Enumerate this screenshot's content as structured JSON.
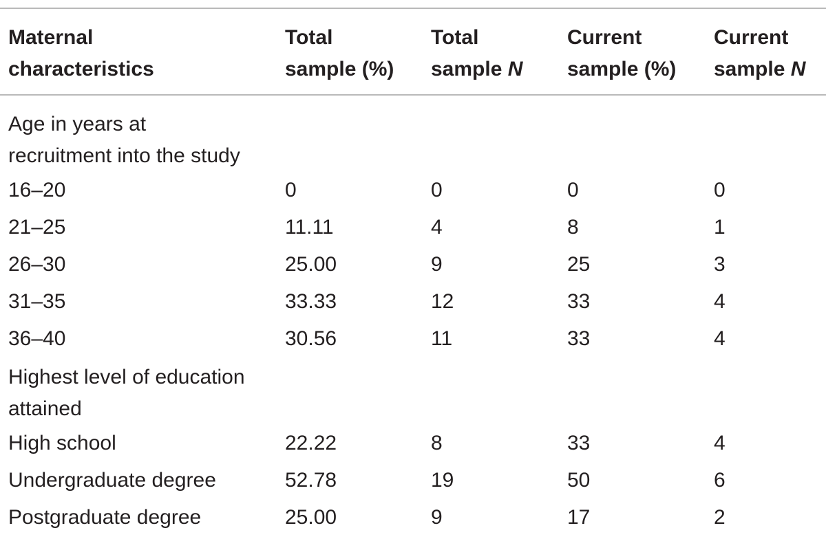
{
  "table": {
    "headers": [
      {
        "line1": "Maternal",
        "line2": "characteristics",
        "italic_suffix": ""
      },
      {
        "line1": "Total",
        "line2": "sample (%)",
        "italic_suffix": ""
      },
      {
        "line1": "Total",
        "line2": "sample ",
        "italic_suffix": "N"
      },
      {
        "line1": "Current",
        "line2": "sample (%)",
        "italic_suffix": ""
      },
      {
        "line1": "Current",
        "line2": "sample ",
        "italic_suffix": "N"
      }
    ],
    "sections": [
      {
        "title_line1": "Age in years at",
        "title_line2": "recruitment into the study",
        "rows": [
          [
            "16–20",
            "0",
            "0",
            "0",
            "0"
          ],
          [
            "21–25",
            "11.11",
            "4",
            "8",
            "1"
          ],
          [
            "26–30",
            "25.00",
            "9",
            "25",
            "3"
          ],
          [
            "31–35",
            "33.33",
            "12",
            "33",
            "4"
          ],
          [
            "36–40",
            "30.56",
            "11",
            "33",
            "4"
          ]
        ]
      },
      {
        "title_line1": "Highest level of education",
        "title_line2": "attained",
        "rows": [
          [
            "High school",
            "22.22",
            "8",
            "33",
            "4"
          ],
          [
            "Undergraduate degree",
            "52.78",
            "19",
            "50",
            "6"
          ],
          [
            "Postgraduate degree",
            "25.00",
            "9",
            "17",
            "2"
          ]
        ]
      }
    ]
  }
}
